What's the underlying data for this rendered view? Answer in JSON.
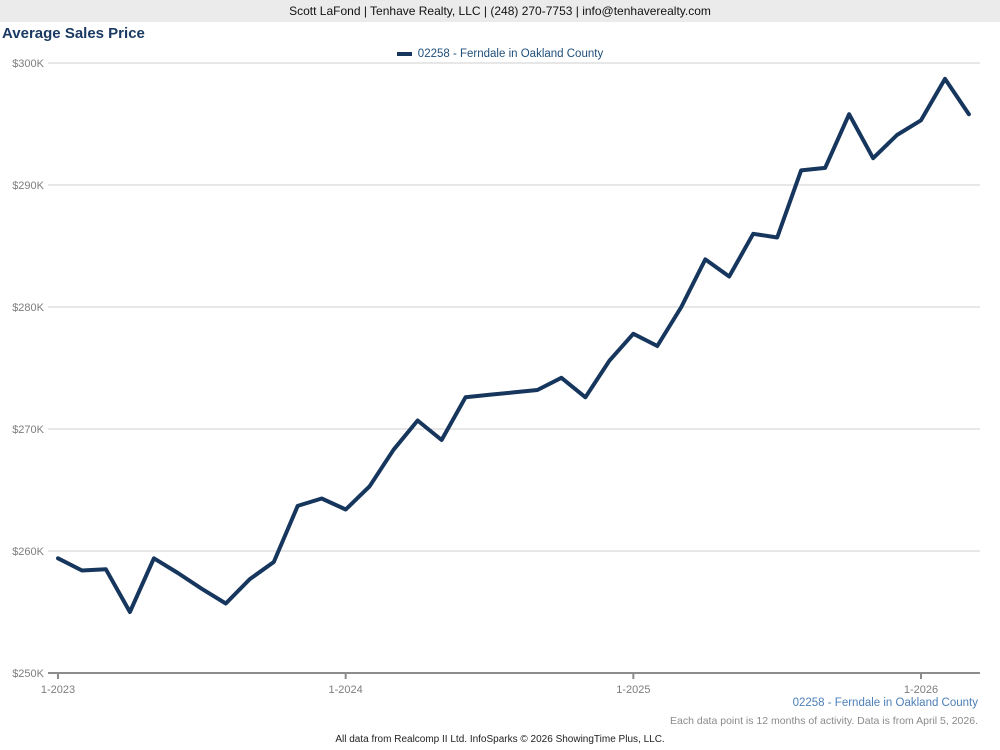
{
  "header": {
    "contact_line": "Scott LaFond | Tenhave Realty, LLC | (248) 270-7753 | info@tenhaverealty.com"
  },
  "page": {
    "title": "Average Sales Price"
  },
  "legend": {
    "label": "02258 - Ferndale in Oakland County"
  },
  "chart_data": {
    "type": "line",
    "title": "Average Sales Price",
    "xlabel": "",
    "ylabel": "Average Sales Price ($K)",
    "ylim": [
      250,
      300
    ],
    "grid": true,
    "legend_position": "top-center",
    "y_ticks": [
      "$250K",
      "$260K",
      "$270K",
      "$280K",
      "$290K",
      "$300K"
    ],
    "y_tick_values": [
      250,
      260,
      270,
      280,
      290,
      300
    ],
    "x_ticks": [
      {
        "label": "1-2023",
        "index": 0
      },
      {
        "label": "1-2024",
        "index": 12
      },
      {
        "label": "1-2025",
        "index": 24
      },
      {
        "label": "1-2026",
        "index": 36
      }
    ],
    "x": [
      "1-2023",
      "2-2023",
      "3-2023",
      "4-2023",
      "5-2023",
      "6-2023",
      "7-2023",
      "8-2023",
      "9-2023",
      "10-2023",
      "11-2023",
      "12-2023",
      "1-2024",
      "2-2024",
      "3-2024",
      "4-2024",
      "5-2024",
      "6-2024",
      "7-2024",
      "8-2024",
      "9-2024",
      "10-2024",
      "11-2024",
      "12-2024",
      "1-2025",
      "2-2025",
      "3-2025",
      "4-2025",
      "5-2025",
      "6-2025",
      "7-2025",
      "8-2025",
      "9-2025",
      "10-2025",
      "11-2025",
      "12-2025",
      "1-2026",
      "2-2026",
      "3-2026"
    ],
    "series": [
      {
        "name": "02258 - Ferndale in Oakland County",
        "color": "#16365d",
        "unit": "USD thousands",
        "values": [
          259.4,
          258.4,
          258.5,
          255.0,
          259.4,
          258.2,
          256.9,
          255.7,
          257.7,
          259.1,
          263.7,
          264.3,
          263.4,
          265.3,
          268.3,
          270.7,
          269.1,
          272.6,
          272.8,
          273.0,
          273.2,
          274.2,
          272.6,
          275.6,
          277.8,
          276.8,
          280.0,
          283.9,
          282.5,
          286.0,
          285.7,
          291.2,
          291.4,
          295.8,
          292.2,
          294.1,
          295.3,
          298.7,
          295.8
        ]
      }
    ]
  },
  "footer": {
    "series_label": "02258 - Ferndale in Oakland County",
    "note": "Each data point is 12 months of activity. Data is from April 5, 2026.",
    "attribution": "All data from Realcomp II Ltd. InfoSparks © 2026 ShowingTime Plus, LLC."
  },
  "colors": {
    "line": "#16365d",
    "header_bar_bg": "#ebebeb",
    "title_text": "#1b3a63",
    "legend_text": "#1f4e79",
    "footer_series_text": "#4d7fb8",
    "gridline": "#cfcfcf",
    "axis_line": "#8c8c8c",
    "axis_label_text": "#7d7d7d"
  }
}
